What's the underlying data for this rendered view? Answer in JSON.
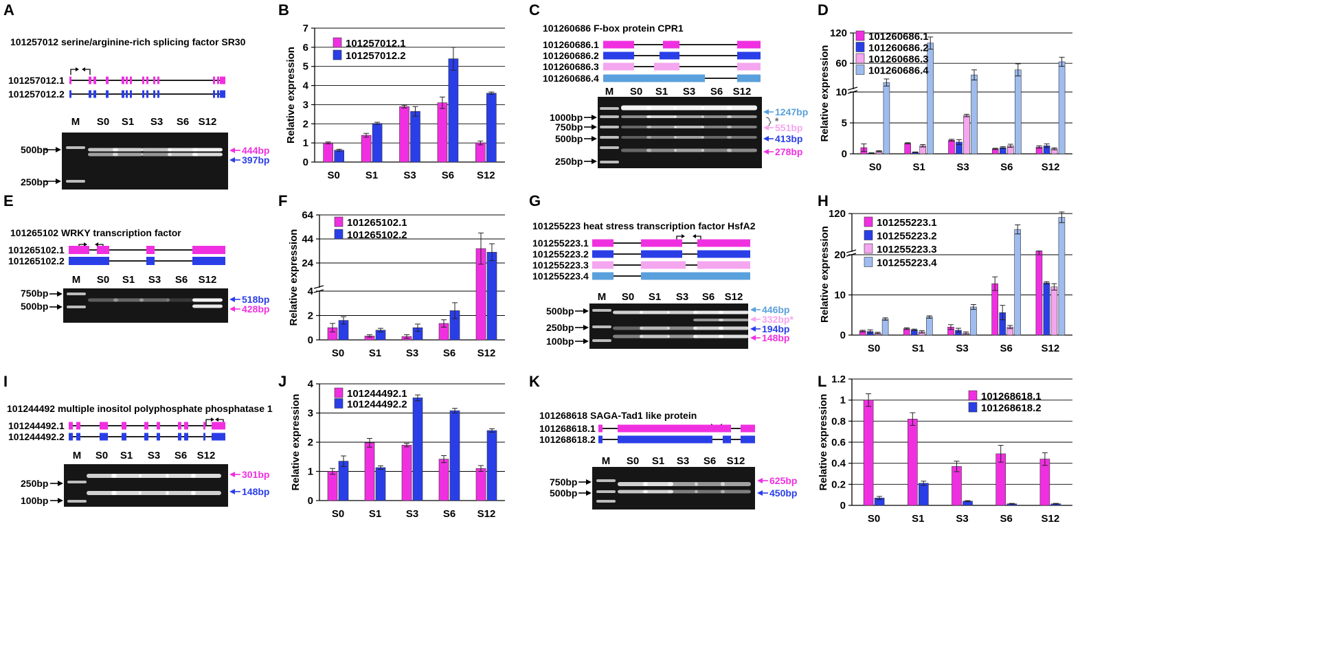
{
  "colors": {
    "magenta": "#f030e0",
    "blue": "#2a3ee8",
    "lightpink": "#f4a6ef",
    "lightblue": "#9fbcef",
    "steelblue": "#5aa0dc",
    "gel": "#161616",
    "grid": "#000000"
  },
  "common": {
    "ylabel": "Relative expression",
    "stages": [
      "S0",
      "S1",
      "S3",
      "S6",
      "S12"
    ],
    "marker": "M"
  },
  "panels": {
    "A": {
      "letter": "A",
      "title": "101257012  serine/arginine-rich splicing factor SR30",
      "isoforms": [
        "101257012.1",
        "101257012.2"
      ],
      "ladder": [
        "500bp",
        "250bp"
      ],
      "bands": [
        "444bp",
        "397bp"
      ]
    },
    "C": {
      "letter": "C",
      "title": "101260686 F-box protein CPR1",
      "isoforms": [
        "101260686.1",
        "101260686.2",
        "101260686.3",
        "101260686.4"
      ],
      "ladder": [
        "1000bp",
        "750bp",
        "500bp",
        "250bp"
      ],
      "bands": [
        "1247bp",
        "*",
        "551bp",
        "413bp",
        "278bp"
      ]
    },
    "E": {
      "letter": "E",
      "title": "101265102 WRKY transcription factor",
      "isoforms": [
        "101265102.1",
        "101265102.2"
      ],
      "ladder": [
        "750bp",
        "500bp"
      ],
      "bands": [
        "518bp",
        "428bp"
      ]
    },
    "G": {
      "letter": "G",
      "title": "101255223 heat stress transcription factor HsfA2",
      "isoforms": [
        "101255223.1",
        "101255223.2",
        "101255223.3",
        "101255223.4"
      ],
      "ladder": [
        "500bp",
        "250bp",
        "100bp"
      ],
      "bands": [
        "446bp",
        "332bp*",
        "194bp",
        "148bp"
      ]
    },
    "I": {
      "letter": "I",
      "title": "101244492 multiple inositol polyphosphate phosphatase 1",
      "isoforms": [
        "101244492.1",
        "101244492.2"
      ],
      "ladder": [
        "250bp",
        "100bp"
      ],
      "bands": [
        "301bp",
        "148bp"
      ]
    },
    "K": {
      "letter": "K",
      "title": "101268618  SAGA-Tad1 like protein",
      "isoforms": [
        "101268618.1",
        "101268618.2"
      ],
      "ladder": [
        "750bp",
        "500bp"
      ],
      "bands": [
        "625bp",
        "450bp"
      ]
    }
  },
  "chart_data": [
    {
      "panel": "B",
      "type": "bar",
      "title": "",
      "xlabel": "",
      "ylabel": "Relative expression",
      "categories": [
        "S0",
        "S1",
        "S3",
        "S6",
        "S12"
      ],
      "ylim": [
        0,
        7
      ],
      "yticks": [
        "0",
        "1",
        "2",
        "3",
        "4",
        "5",
        "6",
        "7"
      ],
      "series": [
        {
          "name": "101257012.1",
          "color": "#f030e0",
          "values": [
            1.0,
            1.4,
            2.9,
            3.1,
            1.0
          ],
          "errors": [
            0.05,
            0.1,
            0.07,
            0.3,
            0.1
          ]
        },
        {
          "name": "101257012.2",
          "color": "#2a3ee8",
          "values": [
            0.62,
            2.02,
            2.65,
            5.4,
            3.6
          ],
          "errors": [
            0.05,
            0.06,
            0.25,
            0.6,
            0.06
          ]
        }
      ]
    },
    {
      "panel": "D",
      "type": "bar",
      "title": "",
      "xlabel": "",
      "ylabel": "Relative expression",
      "categories": [
        "S0",
        "S1",
        "S3",
        "S6",
        "S12"
      ],
      "broken_axis": {
        "lower": [
          0,
          10
        ],
        "upper": [
          10,
          120
        ]
      },
      "yticks": [
        "0",
        "5",
        "10",
        "60",
        "120"
      ],
      "series": [
        {
          "name": "101260686.1",
          "color": "#f030e0",
          "values": [
            1.0,
            1.7,
            2.2,
            0.8,
            1.1
          ],
          "errors": [
            0.6,
            0.1,
            0.15,
            0.1,
            0.2
          ]
        },
        {
          "name": "101260686.2",
          "color": "#2a3ee8",
          "values": [
            0.12,
            0.25,
            1.9,
            1.0,
            1.3
          ],
          "errors": [
            0.05,
            0.05,
            0.4,
            0.15,
            0.3
          ]
        },
        {
          "name": "101260686.3",
          "color": "#f4a6ef",
          "values": [
            0.4,
            1.3,
            6.2,
            1.3,
            0.8
          ],
          "errors": [
            0.1,
            0.2,
            0.2,
            0.25,
            0.15
          ]
        },
        {
          "name": "101260686.4",
          "color": "#9fbcef",
          "values": [
            22,
            100,
            37,
            47,
            63
          ],
          "errors": [
            7,
            12,
            10,
            12,
            9
          ]
        }
      ]
    },
    {
      "panel": "F",
      "type": "bar",
      "title": "",
      "xlabel": "",
      "ylabel": "Relative expression",
      "categories": [
        "S0",
        "S1",
        "S3",
        "S6",
        "S12"
      ],
      "broken_axis": {
        "lower": [
          0,
          4
        ],
        "upper": [
          4,
          64
        ]
      },
      "yticks": [
        "0",
        "2",
        "4",
        "24",
        "44",
        "64"
      ],
      "series": [
        {
          "name": "101265102.1",
          "color": "#f030e0",
          "values": [
            1.0,
            0.32,
            0.28,
            1.35,
            36
          ],
          "errors": [
            0.35,
            0.1,
            0.15,
            0.3,
            13
          ]
        },
        {
          "name": "101265102.2",
          "color": "#2a3ee8",
          "values": [
            1.6,
            0.8,
            1.0,
            2.4,
            33
          ],
          "errors": [
            0.3,
            0.15,
            0.3,
            0.65,
            7
          ]
        }
      ]
    },
    {
      "panel": "H",
      "type": "bar",
      "title": "",
      "xlabel": "",
      "ylabel": "Relative expression",
      "categories": [
        "S0",
        "S1",
        "S3",
        "S6",
        "S12"
      ],
      "broken_axis": {
        "lower": [
          0,
          20
        ],
        "upper": [
          20,
          120
        ]
      },
      "yticks": [
        "0",
        "10",
        "20",
        "120"
      ],
      "series": [
        {
          "name": "101255223.1",
          "color": "#f030e0",
          "values": [
            1.0,
            1.6,
            2.0,
            12.8,
            20.5
          ],
          "errors": [
            0.2,
            0.2,
            0.6,
            1.7,
            0.5
          ]
        },
        {
          "name": "101255223.2",
          "color": "#2a3ee8",
          "values": [
            0.9,
            1.3,
            1.2,
            5.6,
            13.0
          ],
          "errors": [
            0.4,
            0.2,
            0.5,
            1.8,
            0.3
          ]
        },
        {
          "name": "101255223.3",
          "color": "#f4a6ef",
          "values": [
            0.5,
            0.8,
            0.5,
            2.0,
            12.0
          ],
          "errors": [
            0.2,
            0.3,
            0.3,
            0.4,
            0.8
          ]
        },
        {
          "name": "101255223.4",
          "color": "#9fbcef",
          "values": [
            4.0,
            4.5,
            7.0,
            78,
            110
          ],
          "errors": [
            0.3,
            0.3,
            0.6,
            12,
            14
          ]
        }
      ]
    },
    {
      "panel": "J",
      "type": "bar",
      "title": "",
      "xlabel": "",
      "ylabel": "Relative expression",
      "categories": [
        "S0",
        "S1",
        "S3",
        "S6",
        "S12"
      ],
      "ylim": [
        0,
        4
      ],
      "yticks": [
        "0",
        "1",
        "2",
        "3",
        "4"
      ],
      "series": [
        {
          "name": "101244492.1",
          "color": "#f030e0",
          "values": [
            1.0,
            1.98,
            1.9,
            1.42,
            1.1
          ],
          "errors": [
            0.1,
            0.15,
            0.06,
            0.12,
            0.1
          ]
        },
        {
          "name": "101244492.2",
          "color": "#2a3ee8",
          "values": [
            1.35,
            1.13,
            3.52,
            3.08,
            2.4
          ],
          "errors": [
            0.18,
            0.06,
            0.1,
            0.08,
            0.06
          ]
        }
      ]
    },
    {
      "panel": "L",
      "type": "bar",
      "title": "",
      "xlabel": "",
      "ylabel": "Relative expression",
      "categories": [
        "S0",
        "S1",
        "S3",
        "S6",
        "S12"
      ],
      "ylim": [
        0,
        1.2
      ],
      "yticks": [
        "0",
        "0.2",
        "0.4",
        "0.6",
        "0.8",
        "1",
        "1.2"
      ],
      "series": [
        {
          "name": "101268618.1",
          "color": "#f030e0",
          "values": [
            1.0,
            0.82,
            0.37,
            0.49,
            0.44
          ],
          "errors": [
            0.06,
            0.06,
            0.05,
            0.08,
            0.06
          ]
        },
        {
          "name": "101268618.2",
          "color": "#2a3ee8",
          "values": [
            0.07,
            0.21,
            0.04,
            0.015,
            0.015
          ],
          "errors": [
            0.015,
            0.02,
            0.005,
            0.004,
            0.004
          ]
        }
      ]
    }
  ]
}
